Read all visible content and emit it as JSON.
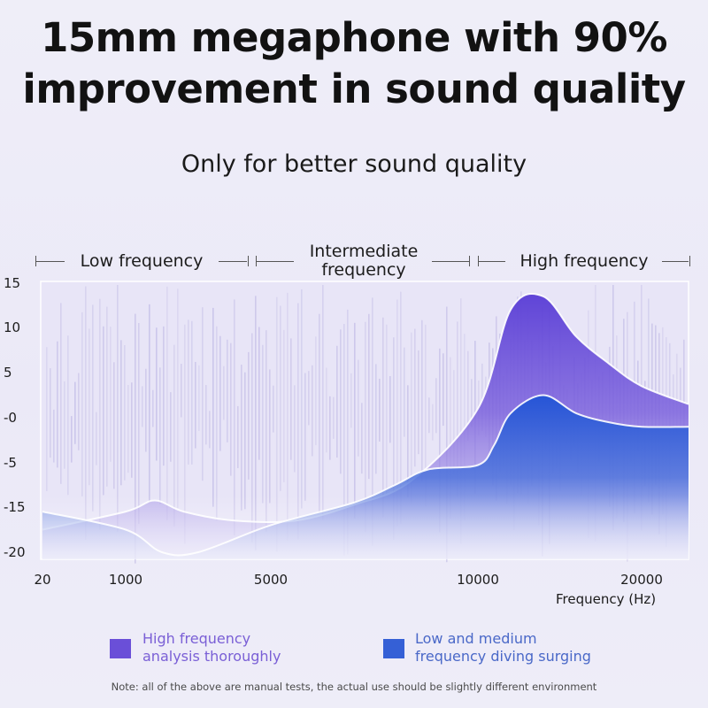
{
  "headline": {
    "line1": "15mm megaphone with 90%",
    "line2": "improvement in sound quality"
  },
  "subtitle": "Only for better sound quality",
  "bands": {
    "low": "Low frequency",
    "mid_line1": "Intermediate",
    "mid_line2": "frequency",
    "high": "High frequency"
  },
  "axis": {
    "y_ticks": [
      "15",
      "10",
      "5",
      "-0",
      "-5",
      "-15",
      "-20"
    ],
    "x_ticks": [
      "20",
      "1000",
      "5000",
      "10000",
      "20000"
    ],
    "x_label": "Frequency (Hz)"
  },
  "legend": [
    {
      "label_line1": "High frequency",
      "label_line2": "analysis thoroughly",
      "color": "#6a4fd8",
      "text_color": "#7a5fd6"
    },
    {
      "label_line1": "Low and medium",
      "label_line2": "frequency diving surging",
      "color": "#3560d6",
      "text_color": "#4a68c8"
    }
  ],
  "note": "Note: all of the above are manual tests, the actual use should be slightly different environment",
  "colors": {
    "purple": "#6a4fd8",
    "blue": "#2f5fd9",
    "plot_bg": "#e9e6f7"
  },
  "chart_data": {
    "type": "area",
    "title": "",
    "xlabel": "Frequency (Hz)",
    "ylabel": "",
    "x_ticks": [
      20,
      1000,
      5000,
      10000,
      20000
    ],
    "y_ticks": [
      15,
      10,
      5,
      0,
      -5,
      -15,
      -20
    ],
    "ylim": [
      -20,
      15
    ],
    "xlim": [
      20,
      22000
    ],
    "series": [
      {
        "name": "High frequency analysis thoroughly",
        "color": "#6a4fd8",
        "x": [
          20,
          1000,
          1800,
          2600,
          4000,
          5600,
          7000,
          8400,
          10000,
          12000,
          14000,
          16000,
          18000,
          20000,
          22000
        ],
        "y": [
          -17.5,
          -15.5,
          -13.5,
          -15.5,
          -16.5,
          -16.5,
          -14.5,
          -9,
          1,
          12,
          13.5,
          9,
          6,
          3.5,
          1.5
        ]
      },
      {
        "name": "Low and medium frequency diving surging",
        "color": "#2f5fd9",
        "x": [
          20,
          1000,
          2000,
          3000,
          5000,
          7000,
          8000,
          8800,
          10000,
          11000,
          12000,
          14000,
          16000,
          18000,
          20000,
          22000
        ],
        "y": [
          -15.5,
          -17.5,
          -20,
          -20,
          -17,
          -14,
          -10,
          -6.5,
          -5.5,
          -3,
          0.5,
          2.5,
          0.5,
          -0.5,
          -1,
          -1
        ]
      }
    ]
  }
}
